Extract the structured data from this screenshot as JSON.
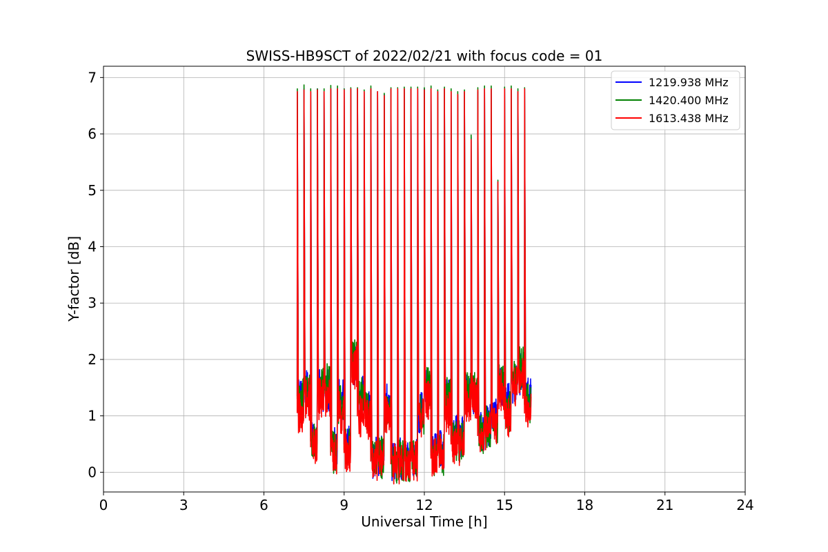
{
  "chart_data": {
    "type": "line",
    "title": "SWISS-HB9SCT of 2022/02/21 with focus code = 01",
    "xlabel": "Universal Time [h]",
    "ylabel": "Y-factor [dB]",
    "xlim": [
      0,
      24
    ],
    "ylim": [
      -0.35,
      7.2
    ],
    "xticks": [
      0,
      3,
      6,
      9,
      12,
      15,
      18,
      21,
      24
    ],
    "yticks": [
      0,
      1,
      2,
      3,
      4,
      5,
      6,
      7
    ],
    "grid": true,
    "legend_position": "top-right",
    "peak_times_h": [
      7.25,
      7.5,
      7.75,
      8.0,
      8.25,
      8.5,
      8.75,
      9.0,
      9.25,
      9.5,
      9.75,
      10.0,
      10.25,
      10.5,
      10.75,
      11.0,
      11.25,
      11.5,
      11.75,
      12.0,
      12.25,
      12.5,
      12.75,
      13.0,
      13.25,
      13.5,
      13.75,
      14.0,
      14.25,
      14.5,
      14.75,
      15.0,
      15.25,
      15.5,
      15.75
    ],
    "series": [
      {
        "name": "1219.938 MHz",
        "color": "#0000ff",
        "segments": [
          [
            7.25,
            1.35
          ],
          [
            7.5,
            1.45
          ],
          [
            7.75,
            0.65
          ],
          [
            8.0,
            1.45
          ],
          [
            8.25,
            1.45
          ],
          [
            8.5,
            0.45
          ],
          [
            8.75,
            1.3
          ],
          [
            9.0,
            0.5
          ],
          [
            9.25,
            1.9
          ],
          [
            9.5,
            1.35
          ],
          [
            9.75,
            1.15
          ],
          [
            10.0,
            0.25
          ],
          [
            10.25,
            0.3
          ],
          [
            10.5,
            1.2
          ],
          [
            10.75,
            0.2
          ],
          [
            11.0,
            0.25
          ],
          [
            11.25,
            0.25
          ],
          [
            11.5,
            0.3
          ],
          [
            11.75,
            1.05
          ],
          [
            12.0,
            1.45
          ],
          [
            12.25,
            0.35
          ],
          [
            12.5,
            0.4
          ],
          [
            12.75,
            1.3
          ],
          [
            13.0,
            0.65
          ],
          [
            13.25,
            0.65
          ],
          [
            13.5,
            1.4
          ],
          [
            13.75,
            1.35
          ],
          [
            14.0,
            0.75
          ],
          [
            14.25,
            0.85
          ],
          [
            14.5,
            0.95
          ],
          [
            14.75,
            1.5
          ],
          [
            15.0,
            1.2
          ],
          [
            15.25,
            1.6
          ],
          [
            15.5,
            1.75
          ],
          [
            15.75,
            1.3
          ]
        ],
        "peaks": [
          6.75,
          6.8,
          6.75,
          6.8,
          6.75,
          6.8,
          6.8,
          6.8,
          6.8,
          6.8,
          6.75,
          6.8,
          6.75,
          6.7,
          6.8,
          6.8,
          6.8,
          6.8,
          6.8,
          6.8,
          6.8,
          6.75,
          6.8,
          6.75,
          6.7,
          6.75,
          5.95,
          6.75,
          6.8,
          6.8,
          5.15,
          6.8,
          6.8,
          6.75,
          6.8
        ]
      },
      {
        "name": "1420.400 MHz",
        "color": "#008000",
        "segments": [
          [
            7.25,
            1.3
          ],
          [
            7.5,
            1.5
          ],
          [
            7.75,
            0.55
          ],
          [
            8.0,
            1.5
          ],
          [
            8.25,
            1.55
          ],
          [
            8.5,
            0.35
          ],
          [
            8.75,
            1.2
          ],
          [
            9.0,
            0.4
          ],
          [
            9.25,
            2.0
          ],
          [
            9.5,
            1.3
          ],
          [
            9.75,
            1.1
          ],
          [
            10.0,
            0.2
          ],
          [
            10.25,
            0.25
          ],
          [
            10.5,
            1.1
          ],
          [
            10.75,
            0.15
          ],
          [
            11.0,
            0.2
          ],
          [
            11.25,
            0.2
          ],
          [
            11.5,
            0.25
          ],
          [
            11.75,
            1.05
          ],
          [
            12.0,
            1.5
          ],
          [
            12.25,
            0.3
          ],
          [
            12.5,
            0.3
          ],
          [
            12.75,
            1.3
          ],
          [
            13.0,
            0.55
          ],
          [
            13.25,
            0.55
          ],
          [
            13.5,
            1.45
          ],
          [
            13.75,
            1.5
          ],
          [
            14.0,
            0.7
          ],
          [
            14.25,
            0.8
          ],
          [
            14.5,
            0.9
          ],
          [
            14.75,
            1.6
          ],
          [
            15.0,
            1.05
          ],
          [
            15.25,
            1.7
          ],
          [
            15.5,
            1.85
          ],
          [
            15.75,
            1.2
          ]
        ],
        "peaks": [
          6.8,
          6.87,
          6.8,
          6.8,
          6.8,
          6.86,
          6.85,
          6.8,
          6.82,
          6.82,
          6.78,
          6.85,
          6.75,
          6.72,
          6.82,
          6.82,
          6.83,
          6.83,
          6.83,
          6.82,
          6.85,
          6.78,
          6.83,
          6.8,
          6.75,
          6.78,
          5.98,
          6.82,
          6.85,
          6.85,
          5.18,
          6.83,
          6.85,
          6.8,
          6.82
        ]
      },
      {
        "name": "1613.438 MHz",
        "color": "#ff0000",
        "segments": [
          [
            7.25,
            1.05
          ],
          [
            7.5,
            1.3
          ],
          [
            7.75,
            0.45
          ],
          [
            8.0,
            1.3
          ],
          [
            8.25,
            1.35
          ],
          [
            8.5,
            0.3
          ],
          [
            8.75,
            1.05
          ],
          [
            9.0,
            0.35
          ],
          [
            9.25,
            1.85
          ],
          [
            9.5,
            1.0
          ],
          [
            9.75,
            0.95
          ],
          [
            10.0,
            0.2
          ],
          [
            10.25,
            0.2
          ],
          [
            10.5,
            1.0
          ],
          [
            10.75,
            0.15
          ],
          [
            11.0,
            0.15
          ],
          [
            11.25,
            0.2
          ],
          [
            11.5,
            0.2
          ],
          [
            11.75,
            0.95
          ],
          [
            12.0,
            1.3
          ],
          [
            12.25,
            0.25
          ],
          [
            12.5,
            0.3
          ],
          [
            12.75,
            1.05
          ],
          [
            13.0,
            0.5
          ],
          [
            13.25,
            0.5
          ],
          [
            13.5,
            1.25
          ],
          [
            13.75,
            1.3
          ],
          [
            14.0,
            0.65
          ],
          [
            14.25,
            0.75
          ],
          [
            14.5,
            0.85
          ],
          [
            14.75,
            1.45
          ],
          [
            15.0,
            0.95
          ],
          [
            15.25,
            1.55
          ],
          [
            15.5,
            1.65
          ],
          [
            15.75,
            1.05
          ]
        ],
        "peaks": [
          6.75,
          6.78,
          6.75,
          6.78,
          6.75,
          6.8,
          6.8,
          6.78,
          6.8,
          6.8,
          6.75,
          6.8,
          6.75,
          6.68,
          6.8,
          6.8,
          6.8,
          6.8,
          6.8,
          6.78,
          6.8,
          6.75,
          6.8,
          6.75,
          6.7,
          6.75,
          5.9,
          6.78,
          6.8,
          6.8,
          5.15,
          6.8,
          6.8,
          6.75,
          6.8
        ]
      }
    ]
  }
}
